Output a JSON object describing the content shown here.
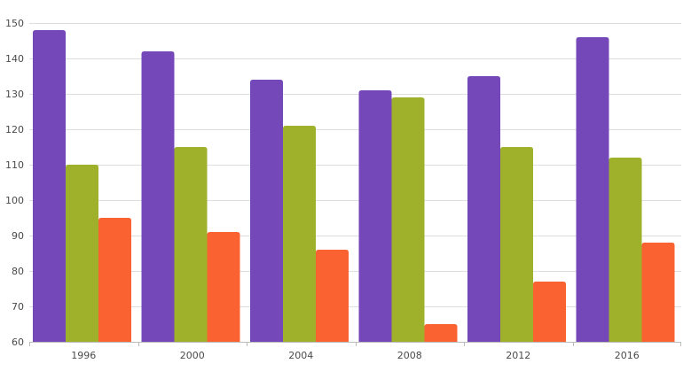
{
  "chart_data": {
    "type": "bar",
    "categories": [
      "1996",
      "2000",
      "2004",
      "2008",
      "2012",
      "2016"
    ],
    "series": [
      {
        "values": [
          148,
          142,
          134,
          131,
          135,
          146
        ],
        "color": "#7548b9"
      },
      {
        "values": [
          110,
          115,
          121,
          129,
          115,
          112
        ],
        "color": "#9fb12a"
      },
      {
        "values": [
          95,
          91,
          86,
          65,
          77,
          88
        ],
        "color": "#fa6331"
      }
    ],
    "ylim": [
      60,
      150
    ],
    "yticks": [
      60,
      70,
      80,
      90,
      100,
      110,
      120,
      130,
      140,
      150
    ],
    "ytick_labels": [
      "60",
      "70",
      "80",
      "90",
      "100",
      "110",
      "120",
      "130",
      "140",
      "150"
    ],
    "grid": true,
    "legend": "none",
    "title": "",
    "xlabel": "",
    "ylabel": ""
  }
}
